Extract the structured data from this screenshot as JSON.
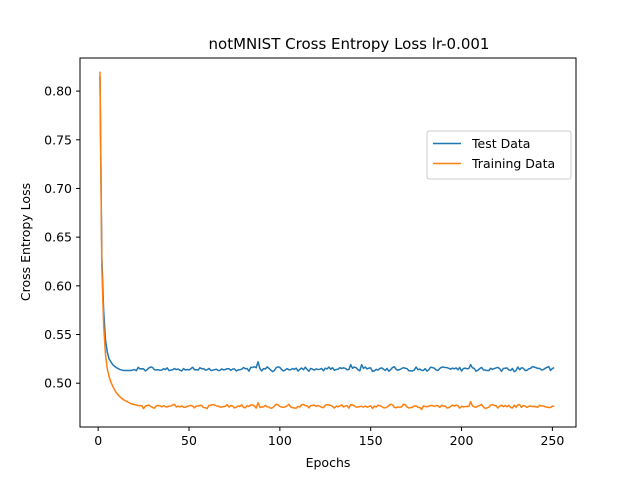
{
  "chart_data": {
    "type": "line",
    "title": "notMNIST Cross Entropy Loss lr-0.001",
    "xlabel": "Epochs",
    "ylabel": "Cross Entropy Loss",
    "xlim": [
      -10,
      263
    ],
    "ylim": [
      0.455,
      0.834
    ],
    "xticks": [
      0,
      50,
      100,
      150,
      200,
      250
    ],
    "yticks": [
      0.5,
      0.55,
      0.6,
      0.65,
      0.7,
      0.75,
      0.8
    ],
    "ytick_labels": [
      "0.50",
      "0.55",
      "0.60",
      "0.65",
      "0.70",
      "0.75",
      "0.80"
    ],
    "xtick_labels": [
      "0",
      "50",
      "100",
      "150",
      "200",
      "250"
    ],
    "grid": false,
    "legend": "right",
    "series": [
      {
        "name": "Test Data",
        "color": "#1f77b4",
        "curve": {
          "x": [
            1,
            2,
            3,
            4,
            5,
            6,
            7,
            8,
            10,
            12,
            14,
            16,
            18,
            20
          ],
          "y": [
            0.815,
            0.63,
            0.575,
            0.545,
            0.532,
            0.525,
            0.522,
            0.519,
            0.516,
            0.514,
            0.513,
            0.513,
            0.513,
            0.514
          ]
        },
        "plateau": {
          "start": 21,
          "end": 251,
          "base": 0.5145,
          "noise": 0.0018,
          "amp": 0.002,
          "spikes": [
            [
              88,
              0.522
            ],
            [
              139,
              0.519
            ],
            [
              145,
              0.519
            ],
            [
              205,
              0.519
            ],
            [
              248,
              0.517
            ]
          ]
        }
      },
      {
        "name": "Training Data",
        "color": "#ff7f0e",
        "curve": {
          "x": [
            1,
            2,
            3,
            4,
            5,
            6,
            7,
            8,
            10,
            12,
            14,
            16,
            18,
            20,
            22,
            24
          ],
          "y": [
            0.82,
            0.62,
            0.56,
            0.53,
            0.515,
            0.507,
            0.501,
            0.497,
            0.49,
            0.486,
            0.483,
            0.481,
            0.479,
            0.478,
            0.477,
            0.477
          ]
        },
        "plateau": {
          "start": 25,
          "end": 251,
          "base": 0.4762,
          "noise": 0.0015,
          "amp": 0.0015,
          "spikes": [
            [
              88,
              0.48
            ],
            [
              178,
              0.473
            ],
            [
              205,
              0.481
            ]
          ]
        }
      }
    ]
  }
}
